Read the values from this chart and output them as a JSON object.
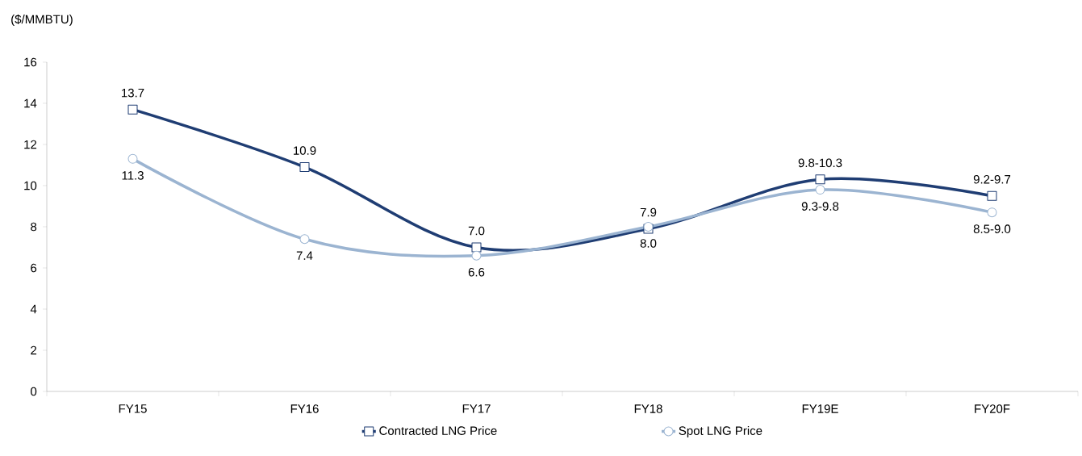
{
  "chart_data": {
    "type": "line",
    "ylabel": "($/MMBTU)",
    "categories": [
      "FY15",
      "FY16",
      "FY17",
      "FY18",
      "FY19E",
      "FY20F"
    ],
    "series": [
      {
        "name": "Contracted LNG Price",
        "color": "#1f3d73",
        "marker": "square",
        "values": [
          13.7,
          10.9,
          7.0,
          7.9,
          10.3,
          9.5
        ],
        "value_labels": [
          "13.7",
          "10.9",
          "7.0",
          "7.9",
          "9.8-10.3",
          "9.2-9.7"
        ]
      },
      {
        "name": "Spot LNG Price",
        "color": "#9bb4d1",
        "marker": "circle",
        "values": [
          11.3,
          7.4,
          6.6,
          8.0,
          9.8,
          8.7
        ],
        "value_labels": [
          "11.3",
          "7.4",
          "6.6",
          "8.0",
          "9.3-9.8",
          "8.5-9.0"
        ]
      }
    ],
    "ylim": [
      0,
      16
    ],
    "yticks": [
      0,
      2,
      4,
      6,
      8,
      10,
      12,
      14,
      16
    ],
    "grid": false,
    "legend": "bottom",
    "line_style": "solid"
  }
}
